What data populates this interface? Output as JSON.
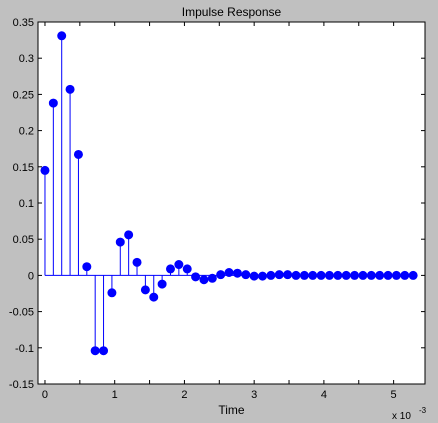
{
  "chart_data": {
    "type": "stem",
    "title": "Impulse Response",
    "xlabel": "Time",
    "ylabel": "",
    "x_exponent_label": "x 10",
    "x_exponent": "-3",
    "xlim": [
      -0.1,
      5.45
    ],
    "ylim": [
      -0.15,
      0.35
    ],
    "x_ticks": [
      0,
      0.5,
      1,
      1.5,
      2,
      2.5,
      3,
      3.5,
      4,
      4.5,
      5
    ],
    "x_tick_labels": [
      "0",
      "",
      "1",
      "",
      "2",
      "",
      "3",
      "",
      "4",
      "",
      "5"
    ],
    "y_ticks": [
      -0.15,
      -0.1,
      -0.05,
      0,
      0.05,
      0.1,
      0.15,
      0.2,
      0.25,
      0.3,
      0.35
    ],
    "y_tick_labels": [
      "-0.15",
      "-0.1",
      "-0.05",
      "0",
      "0.05",
      "0.1",
      "0.15",
      "0.2",
      "0.25",
      "0.3",
      "0.35"
    ],
    "grid": false,
    "series": [
      {
        "color": "#0000ff",
        "x": [
          0,
          0.12,
          0.24,
          0.36,
          0.48,
          0.6,
          0.72,
          0.84,
          0.96,
          1.08,
          1.2,
          1.32,
          1.44,
          1.56,
          1.68,
          1.8,
          1.92,
          2.04,
          2.16,
          2.28,
          2.4,
          2.52,
          2.64,
          2.76,
          2.88,
          3.0,
          3.12,
          3.24,
          3.36,
          3.48,
          3.6,
          3.72,
          3.84,
          3.96,
          4.08,
          4.2,
          4.32,
          4.44,
          4.56,
          4.68,
          4.8,
          4.92,
          5.04,
          5.16,
          5.28
        ],
        "y": [
          0.145,
          0.238,
          0.331,
          0.257,
          0.167,
          0.012,
          -0.104,
          -0.104,
          -0.024,
          0.046,
          0.056,
          0.018,
          -0.02,
          -0.03,
          -0.012,
          0.009,
          0.015,
          0.009,
          -0.002,
          -0.006,
          -0.004,
          0.001,
          0.004,
          0.003,
          0.001,
          -0.001,
          -0.001,
          0.0,
          0.001,
          0.001,
          0.0,
          0.0,
          0.0,
          0.0,
          0.0,
          0.0,
          0.0,
          0.0,
          0.0,
          0.0,
          0.0,
          0.0,
          0.0,
          0.0,
          0.0
        ]
      }
    ]
  }
}
